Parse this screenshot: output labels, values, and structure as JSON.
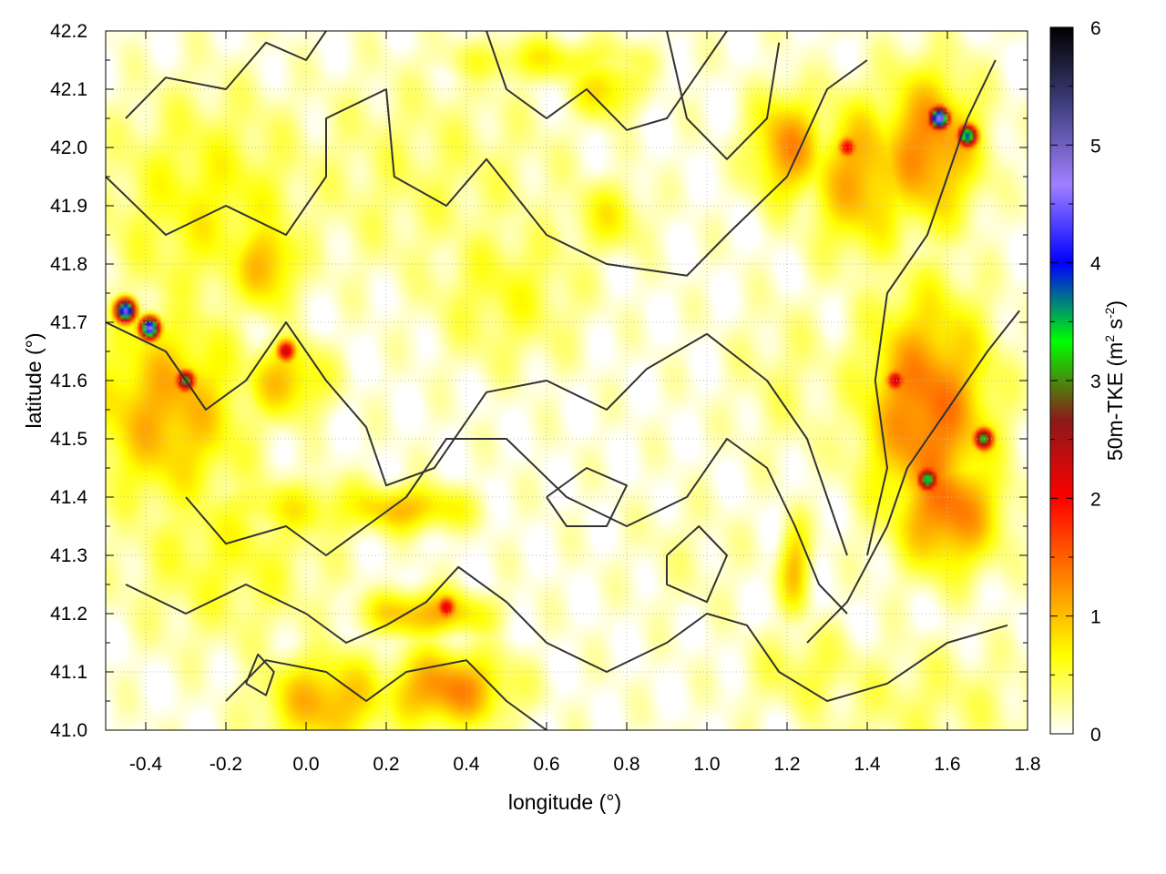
{
  "chart_data": {
    "type": "heatmap",
    "xlabel": "longitude (°)",
    "ylabel": "latitude (°)",
    "xlim": [
      -0.5,
      1.8
    ],
    "ylim": [
      41.0,
      42.2
    ],
    "x_ticks": [
      "-0.4",
      "-0.2",
      "0.0",
      "0.2",
      "0.4",
      "0.6",
      "0.8",
      "1.0",
      "1.2",
      "1.4",
      "1.6",
      "1.8"
    ],
    "y_ticks": [
      "41.0",
      "41.1",
      "41.2",
      "41.3",
      "41.4",
      "41.5",
      "41.6",
      "41.7",
      "41.8",
      "41.9",
      "42.0",
      "42.1",
      "42.2"
    ],
    "colorbar": {
      "label_parts": [
        "50m-TKE (m",
        "2",
        " s",
        "-2",
        ")"
      ],
      "range": [
        0,
        6
      ],
      "ticks": [
        "0",
        "1",
        "2",
        "3",
        "4",
        "5",
        "6"
      ],
      "colormap": [
        "#ffffff",
        "#ffff00",
        "#ff8000",
        "#ff0000",
        "#8b1a1a",
        "#00ff00",
        "#0000ff",
        "#a080ff",
        "#404080",
        "#000000"
      ]
    },
    "grid": true,
    "contour_overlay": true,
    "hotspots": [
      {
        "lon": -0.45,
        "lat": 41.72,
        "tke": 4.2
      },
      {
        "lon": -0.39,
        "lat": 41.69,
        "tke": 4.5
      },
      {
        "lon": -0.3,
        "lat": 41.6,
        "tke": 3.0
      },
      {
        "lon": -0.05,
        "lat": 41.65,
        "tke": 2.2
      },
      {
        "lon": 0.35,
        "lat": 41.21,
        "tke": 2.0
      },
      {
        "lon": 1.58,
        "lat": 42.05,
        "tke": 4.5
      },
      {
        "lon": 1.65,
        "lat": 42.02,
        "tke": 3.5
      },
      {
        "lon": 1.55,
        "lat": 41.43,
        "tke": 3.2
      },
      {
        "lon": 1.69,
        "lat": 41.5,
        "tke": 3.0
      },
      {
        "lon": 1.47,
        "lat": 41.6,
        "tke": 2.2
      },
      {
        "lon": 1.35,
        "lat": 42.0,
        "tke": 2.0
      }
    ],
    "fields": [
      {
        "lon": -0.35,
        "lat": 41.55,
        "tke": 1.0,
        "slon": 0.15,
        "slat": 0.12
      },
      {
        "lon": -0.25,
        "lat": 41.9,
        "tke": 0.6,
        "slon": 0.2,
        "slat": 0.15
      },
      {
        "lon": -0.1,
        "lat": 41.8,
        "tke": 1.0,
        "slon": 0.06,
        "slat": 0.06
      },
      {
        "lon": -0.05,
        "lat": 41.6,
        "tke": 0.9,
        "slon": 0.08,
        "slat": 0.05
      },
      {
        "lon": -0.2,
        "lat": 41.3,
        "tke": 0.5,
        "slon": 0.2,
        "slat": 0.12
      },
      {
        "lon": 0.05,
        "lat": 41.05,
        "tke": 1.0,
        "slon": 0.12,
        "slat": 0.06
      },
      {
        "lon": 0.35,
        "lat": 41.07,
        "tke": 1.2,
        "slon": 0.12,
        "slat": 0.05
      },
      {
        "lon": 0.3,
        "lat": 41.2,
        "tke": 1.0,
        "slon": 0.12,
        "slat": 0.03
      },
      {
        "lon": 0.25,
        "lat": 41.38,
        "tke": 0.9,
        "slon": 0.12,
        "slat": 0.03
      },
      {
        "lon": 0.0,
        "lat": 41.38,
        "tke": 0.6,
        "slon": 0.25,
        "slat": 0.04
      },
      {
        "lon": 0.5,
        "lat": 41.75,
        "tke": 0.5,
        "slon": 0.15,
        "slat": 0.1
      },
      {
        "lon": 0.3,
        "lat": 41.95,
        "tke": 0.35,
        "slon": 0.3,
        "slat": 0.15
      },
      {
        "lon": 0.75,
        "lat": 42.1,
        "tke": 0.8,
        "slon": 0.06,
        "slat": 0.04
      },
      {
        "lon": 0.6,
        "lat": 42.15,
        "tke": 0.6,
        "slon": 0.2,
        "slat": 0.03
      },
      {
        "lon": 0.75,
        "lat": 41.88,
        "tke": 0.6,
        "slon": 0.08,
        "slat": 0.05
      },
      {
        "lon": 1.2,
        "lat": 42.0,
        "tke": 1.1,
        "slon": 0.07,
        "slat": 0.07
      },
      {
        "lon": 1.38,
        "lat": 41.95,
        "tke": 1.0,
        "slon": 0.1,
        "slat": 0.1
      },
      {
        "lon": 1.55,
        "lat": 42.0,
        "tke": 1.2,
        "slon": 0.1,
        "slat": 0.1
      },
      {
        "lon": 1.55,
        "lat": 41.55,
        "tke": 1.3,
        "slon": 0.12,
        "slat": 0.15
      },
      {
        "lon": 1.6,
        "lat": 41.38,
        "tke": 1.3,
        "slon": 0.1,
        "slat": 0.08
      },
      {
        "lon": 1.22,
        "lat": 41.28,
        "tke": 0.9,
        "slon": 0.03,
        "slat": 0.06
      },
      {
        "lon": 1.55,
        "lat": 41.05,
        "tke": 0.35,
        "slon": 0.25,
        "slat": 0.08
      },
      {
        "lon": 1.25,
        "lat": 41.1,
        "tke": 0.45,
        "slon": 0.12,
        "slat": 0.06
      },
      {
        "lon": 0.95,
        "lat": 41.3,
        "tke": 0.2,
        "slon": 0.15,
        "slat": 0.1
      },
      {
        "lon": 1.2,
        "lat": 41.6,
        "tke": 0.3,
        "slon": 0.12,
        "slat": 0.12
      }
    ],
    "contours": [
      [
        [
          -0.5,
          41.95
        ],
        [
          -0.35,
          41.85
        ],
        [
          -0.2,
          41.9
        ],
        [
          -0.05,
          41.85
        ],
        [
          0.05,
          41.95
        ],
        [
          0.05,
          42.05
        ],
        [
          0.2,
          42.1
        ],
        [
          0.22,
          41.95
        ],
        [
          0.35,
          41.9
        ],
        [
          0.45,
          41.98
        ],
        [
          0.6,
          41.85
        ],
        [
          0.75,
          41.8
        ],
        [
          0.95,
          41.78
        ],
        [
          1.05,
          41.85
        ],
        [
          1.2,
          41.95
        ],
        [
          1.3,
          42.1
        ],
        [
          1.4,
          42.15
        ]
      ],
      [
        [
          -0.5,
          41.7
        ],
        [
          -0.35,
          41.65
        ],
        [
          -0.25,
          41.55
        ],
        [
          -0.15,
          41.6
        ],
        [
          -0.05,
          41.7
        ],
        [
          0.05,
          41.6
        ],
        [
          0.15,
          41.52
        ],
        [
          0.2,
          41.42
        ],
        [
          0.32,
          41.45
        ],
        [
          0.45,
          41.58
        ],
        [
          0.6,
          41.6
        ],
        [
          0.75,
          41.55
        ],
        [
          0.85,
          41.62
        ],
        [
          1.0,
          41.68
        ],
        [
          1.15,
          41.6
        ],
        [
          1.25,
          41.5
        ],
        [
          1.3,
          41.4
        ],
        [
          1.35,
          41.3
        ]
      ],
      [
        [
          -0.3,
          41.4
        ],
        [
          -0.2,
          41.32
        ],
        [
          -0.05,
          41.35
        ],
        [
          0.05,
          41.3
        ],
        [
          0.15,
          41.35
        ],
        [
          0.25,
          41.4
        ],
        [
          0.35,
          41.5
        ],
        [
          0.5,
          41.5
        ],
        [
          0.65,
          41.4
        ],
        [
          0.8,
          41.35
        ],
        [
          0.95,
          41.4
        ],
        [
          1.05,
          41.5
        ],
        [
          1.15,
          41.45
        ],
        [
          1.22,
          41.35
        ],
        [
          1.28,
          41.25
        ],
        [
          1.35,
          41.2
        ]
      ],
      [
        [
          -0.45,
          41.25
        ],
        [
          -0.3,
          41.2
        ],
        [
          -0.15,
          41.25
        ],
        [
          0.0,
          41.2
        ],
        [
          0.1,
          41.15
        ],
        [
          0.2,
          41.18
        ],
        [
          0.3,
          41.22
        ],
        [
          0.38,
          41.28
        ],
        [
          0.5,
          41.22
        ],
        [
          0.6,
          41.15
        ],
        [
          0.75,
          41.1
        ],
        [
          0.9,
          41.15
        ],
        [
          1.0,
          41.2
        ],
        [
          1.1,
          41.18
        ],
        [
          1.18,
          41.1
        ],
        [
          1.3,
          41.05
        ],
        [
          1.45,
          41.08
        ],
        [
          1.6,
          41.15
        ],
        [
          1.75,
          41.18
        ]
      ],
      [
        [
          -0.2,
          41.05
        ],
        [
          -0.1,
          41.12
        ],
        [
          0.05,
          41.1
        ],
        [
          0.15,
          41.05
        ],
        [
          0.25,
          41.1
        ],
        [
          0.4,
          41.12
        ],
        [
          0.5,
          41.05
        ],
        [
          0.6,
          41.0
        ]
      ],
      [
        [
          -0.45,
          42.05
        ],
        [
          -0.35,
          42.12
        ],
        [
          -0.2,
          42.1
        ],
        [
          -0.1,
          42.18
        ],
        [
          0.0,
          42.15
        ],
        [
          0.05,
          42.2
        ]
      ],
      [
        [
          0.45,
          42.2
        ],
        [
          0.5,
          42.1
        ],
        [
          0.6,
          42.05
        ],
        [
          0.7,
          42.1
        ],
        [
          0.8,
          42.03
        ],
        [
          0.9,
          42.05
        ],
        [
          1.0,
          42.15
        ],
        [
          1.05,
          42.2
        ]
      ],
      [
        [
          0.9,
          42.2
        ],
        [
          0.95,
          42.05
        ],
        [
          1.05,
          41.98
        ],
        [
          1.15,
          42.05
        ],
        [
          1.18,
          42.18
        ]
      ],
      [
        [
          1.25,
          41.15
        ],
        [
          1.35,
          41.22
        ],
        [
          1.45,
          41.35
        ],
        [
          1.5,
          41.45
        ],
        [
          1.6,
          41.55
        ],
        [
          1.7,
          41.65
        ],
        [
          1.78,
          41.72
        ]
      ],
      [
        [
          1.4,
          41.3
        ],
        [
          1.45,
          41.45
        ],
        [
          1.42,
          41.6
        ],
        [
          1.45,
          41.75
        ],
        [
          1.55,
          41.85
        ],
        [
          1.6,
          41.95
        ],
        [
          1.65,
          42.05
        ],
        [
          1.72,
          42.15
        ]
      ],
      [
        [
          0.9,
          41.3
        ],
        [
          0.98,
          41.35
        ],
        [
          1.05,
          41.3
        ],
        [
          1.0,
          41.22
        ],
        [
          0.9,
          41.25
        ],
        [
          0.9,
          41.3
        ]
      ],
      [
        [
          0.6,
          41.4
        ],
        [
          0.7,
          41.45
        ],
        [
          0.8,
          41.42
        ],
        [
          0.75,
          41.35
        ],
        [
          0.65,
          41.35
        ],
        [
          0.6,
          41.4
        ]
      ],
      [
        [
          -0.15,
          41.08
        ],
        [
          -0.12,
          41.13
        ],
        [
          -0.08,
          41.1
        ],
        [
          -0.1,
          41.06
        ],
        [
          -0.15,
          41.08
        ]
      ]
    ]
  }
}
